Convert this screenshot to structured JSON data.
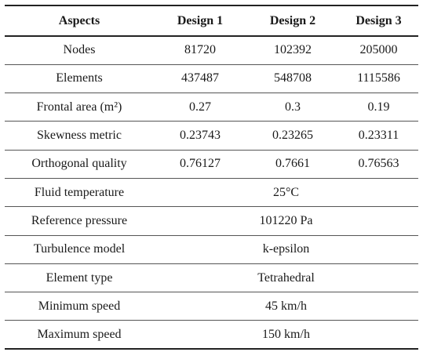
{
  "table": {
    "headers": [
      "Aspects",
      "Design 1",
      "Design 2",
      "Design 3"
    ],
    "rows_split": [
      {
        "label": "Nodes",
        "values": [
          "81720",
          "102392",
          "205000"
        ]
      },
      {
        "label": "Elements",
        "values": [
          "437487",
          "548708",
          "1115586"
        ]
      },
      {
        "label": "Frontal area (m²)",
        "values": [
          "0.27",
          "0.3",
          "0.19"
        ]
      },
      {
        "label": "Skewness metric",
        "values": [
          "0.23743",
          "0.23265",
          "0.23311"
        ]
      },
      {
        "label": "Orthogonal quality",
        "values": [
          "0.76127",
          "0.7661",
          "0.76563"
        ]
      }
    ],
    "rows_merged": [
      {
        "label": "Fluid temperature",
        "value": "25°C"
      },
      {
        "label": "Reference pressure",
        "value": "101220 Pa"
      },
      {
        "label": "Turbulence model",
        "value": "k-epsilon"
      },
      {
        "label": "Element type",
        "value": "Tetrahedral"
      },
      {
        "label": "Minimum speed",
        "value": "45 km/h"
      },
      {
        "label": "Maximum speed",
        "value": "150 km/h"
      }
    ]
  }
}
